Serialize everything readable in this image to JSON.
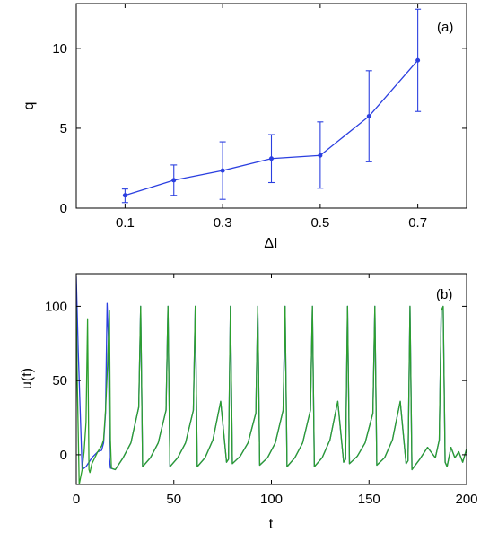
{
  "chart_data": [
    {
      "type": "line",
      "panel_label": "(a)",
      "xlabel": "ΔI",
      "ylabel": "q",
      "xlim": [
        0,
        0.8
      ],
      "ylim": [
        0,
        12.8
      ],
      "xticks": [
        0.1,
        0.3,
        0.5,
        0.7
      ],
      "yticks": [
        0,
        5,
        10
      ],
      "grid": false,
      "color": "#2b3fe0",
      "series": [
        {
          "x": [
            0.1,
            0.2,
            0.3,
            0.4,
            0.5,
            0.6,
            0.7
          ],
          "y": [
            0.8,
            1.75,
            2.35,
            3.1,
            3.3,
            5.75,
            9.25
          ],
          "err_low": [
            0.35,
            0.8,
            0.55,
            1.6,
            1.25,
            2.9,
            6.05
          ],
          "err_high": [
            1.2,
            2.7,
            4.15,
            4.6,
            5.4,
            8.6,
            12.45
          ]
        }
      ]
    },
    {
      "type": "line",
      "panel_label": "(b)",
      "xlabel": "t",
      "ylabel": "u(t)",
      "xlim": [
        0,
        200
      ],
      "ylim": [
        -20,
        122
      ],
      "xticks": [
        0,
        50,
        100,
        150,
        200
      ],
      "yticks": [
        0,
        50,
        100
      ],
      "grid": false,
      "series": [
        {
          "color": "#2b3fe0",
          "x": [
            0,
            1,
            3,
            5,
            8,
            11,
            13,
            14,
            15,
            15.8,
            16.5,
            17,
            17.5,
            20,
            24,
            28,
            32,
            33,
            34,
            38,
            42,
            46,
            47,
            48,
            52,
            56,
            60,
            61,
            62,
            66,
            70,
            74,
            77,
            78,
            79,
            80,
            84,
            88,
            92,
            93,
            94,
            98,
            102,
            106,
            107,
            108,
            112,
            116,
            120,
            121,
            122,
            126,
            130,
            134,
            137,
            138,
            139,
            140,
            144,
            148,
            152,
            153,
            154,
            158,
            162,
            166,
            169,
            170,
            171,
            172,
            176,
            180,
            184,
            186,
            187,
            188,
            189,
            190,
            192,
            194,
            196,
            198,
            200
          ],
          "y": [
            120,
            70,
            -10,
            -8,
            -2,
            2,
            3,
            8,
            28,
            102,
            78,
            -2,
            -9,
            -10,
            -2,
            8,
            32,
            100,
            -8,
            -2,
            8,
            30,
            100,
            -8,
            -2,
            8,
            30,
            100,
            -8,
            -2,
            10,
            36,
            -5,
            -3,
            100,
            -6,
            -1,
            8,
            28,
            100,
            -7,
            -2,
            8,
            30,
            100,
            -8,
            -2,
            8,
            30,
            100,
            -8,
            -2,
            10,
            36,
            -5,
            -3,
            100,
            -6,
            -1,
            8,
            28,
            100,
            -7,
            -2,
            10,
            36,
            -6,
            -4,
            100,
            -10,
            -3,
            5,
            -2,
            10,
            97,
            100,
            -5,
            -8,
            5,
            -2,
            2,
            -5,
            4
          ]
        },
        {
          "color": "#2ca02c",
          "x": [
            0,
            0.5,
            1.5,
            3,
            4,
            5,
            5.8,
            6.5,
            7,
            8,
            11,
            13,
            14,
            15,
            16,
            17,
            17.5,
            18,
            20,
            24,
            28,
            32,
            33,
            34,
            38,
            42,
            46,
            47,
            48,
            52,
            56,
            60,
            61,
            62,
            66,
            70,
            74,
            77,
            78,
            79,
            80,
            84,
            88,
            92,
            93,
            94,
            98,
            102,
            106,
            107,
            108,
            112,
            116,
            120,
            121,
            122,
            126,
            130,
            134,
            137,
            138,
            139,
            140,
            144,
            148,
            152,
            153,
            154,
            158,
            162,
            166,
            169,
            170,
            171,
            172,
            176,
            180,
            184,
            186,
            187,
            188,
            189,
            190,
            192,
            194,
            196,
            198,
            200
          ],
          "y": [
            100,
            50,
            -20,
            -10,
            2,
            22,
            91,
            -10,
            -12,
            -6,
            2,
            6,
            10,
            30,
            60,
            97,
            10,
            -9,
            -10,
            -2,
            8,
            32,
            100,
            -8,
            -2,
            8,
            30,
            100,
            -8,
            -2,
            8,
            30,
            100,
            -8,
            -2,
            10,
            36,
            -5,
            -3,
            100,
            -6,
            -1,
            8,
            28,
            100,
            -7,
            -2,
            8,
            30,
            100,
            -8,
            -2,
            8,
            30,
            100,
            -8,
            -2,
            10,
            36,
            -5,
            -3,
            100,
            -6,
            -1,
            8,
            28,
            100,
            -7,
            -2,
            10,
            36,
            -6,
            -4,
            100,
            -10,
            -3,
            5,
            -2,
            10,
            97,
            100,
            -5,
            -8,
            5,
            -2,
            2,
            -5,
            4
          ]
        }
      ]
    }
  ]
}
